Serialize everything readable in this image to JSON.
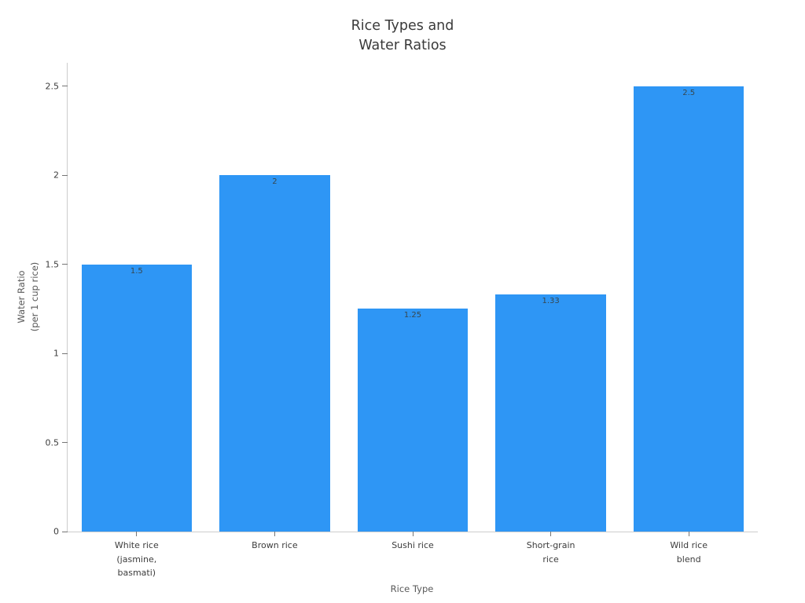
{
  "colors": {
    "background": "#ffffff",
    "bar": "#2E96F5",
    "title_text": "#3a3a3a",
    "tick_text": "#3c3c3c",
    "axis_label_text": "#595959",
    "value_label_text": "#37474f",
    "axis_line": "#cccccc",
    "tick_mark": "#757575"
  },
  "chart_data": {
    "type": "bar",
    "title": "Rice Types and\nWater Ratios",
    "xlabel": "Rice Type",
    "ylabel": "Water Ratio\n(per 1 cup rice)",
    "categories": [
      "White rice\n(jasmine,\nbasmati)",
      "Brown rice",
      "Sushi rice",
      "Short-grain\nrice",
      "Wild rice\nblend"
    ],
    "values": [
      1.5,
      2,
      1.25,
      1.33,
      2.5
    ],
    "value_labels": [
      "1.5",
      "2",
      "1.25",
      "1.33",
      "2.5"
    ],
    "yticks": [
      0,
      0.5,
      1,
      1.5,
      2,
      2.5
    ],
    "ytick_labels": [
      "0",
      "0.5",
      "1",
      "1.5",
      "2",
      "2.5"
    ],
    "ylim": [
      0,
      2.63
    ],
    "bar_width_fraction": 0.8,
    "grid": false,
    "legend": "none",
    "bar_color": "#2E96F5"
  }
}
